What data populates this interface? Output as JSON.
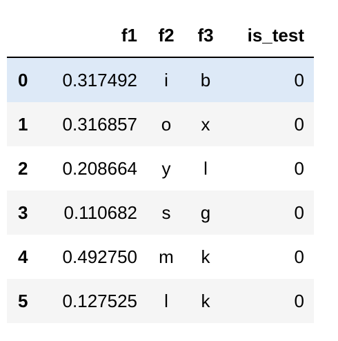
{
  "table": {
    "columns": [
      "f1",
      "f2",
      "f3",
      "is_test"
    ],
    "rows": [
      {
        "index": "0",
        "f1": "0.317492",
        "f2": "i",
        "f3": "b",
        "is_test": "0"
      },
      {
        "index": "1",
        "f1": "0.316857",
        "f2": "o",
        "f3": "x",
        "is_test": "0"
      },
      {
        "index": "2",
        "f1": "0.208664",
        "f2": "y",
        "f3": "l",
        "is_test": "0"
      },
      {
        "index": "3",
        "f1": "0.110682",
        "f2": "s",
        "f3": "g",
        "is_test": "0"
      },
      {
        "index": "4",
        "f1": "0.492750",
        "f2": "m",
        "f3": "k",
        "is_test": "0"
      },
      {
        "index": "5",
        "f1": "0.127525",
        "f2": "l",
        "f3": "k",
        "is_test": "0"
      }
    ],
    "highlighted_row": 0,
    "colors": {
      "highlight": "#dde9f7",
      "stripe": "#f5f5f5",
      "header_rule": "#000000"
    }
  }
}
